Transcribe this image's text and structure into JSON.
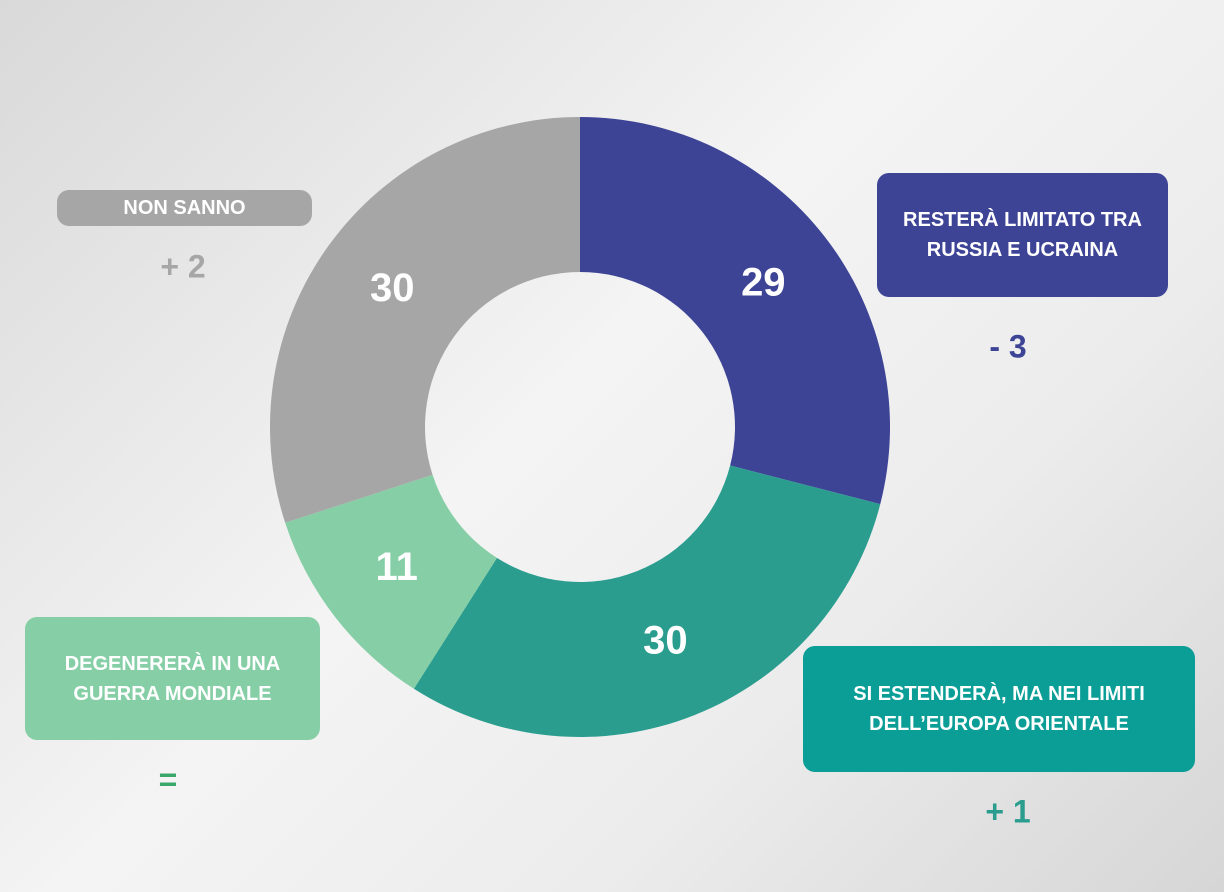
{
  "chart_data": {
    "type": "donut",
    "categories": [
      "RESTERÀ LIMITATO TRA RUSSIA E UCRAINA",
      "SI ESTENDERÀ, MA NEI LIMITI DELL’EUROPA ORIENTALE",
      "DEGENERERÀ IN UNA GUERRA MONDIALE",
      "NON SANNO"
    ],
    "values": [
      29,
      30,
      11,
      30
    ],
    "colors": [
      "#3d4496",
      "#2a9d8f",
      "#86cfa6",
      "#a6a6a6"
    ],
    "label_colors": [
      "#3d4496",
      "#0a9e96",
      "#86cfa6",
      "#a6a6a6"
    ],
    "changes": [
      "- 3",
      "+ 1",
      "=",
      "+ 2"
    ],
    "change_colors": [
      "#3d4496",
      "#2a9d8f",
      "#3aa86b",
      "#a6a6a6"
    ]
  }
}
